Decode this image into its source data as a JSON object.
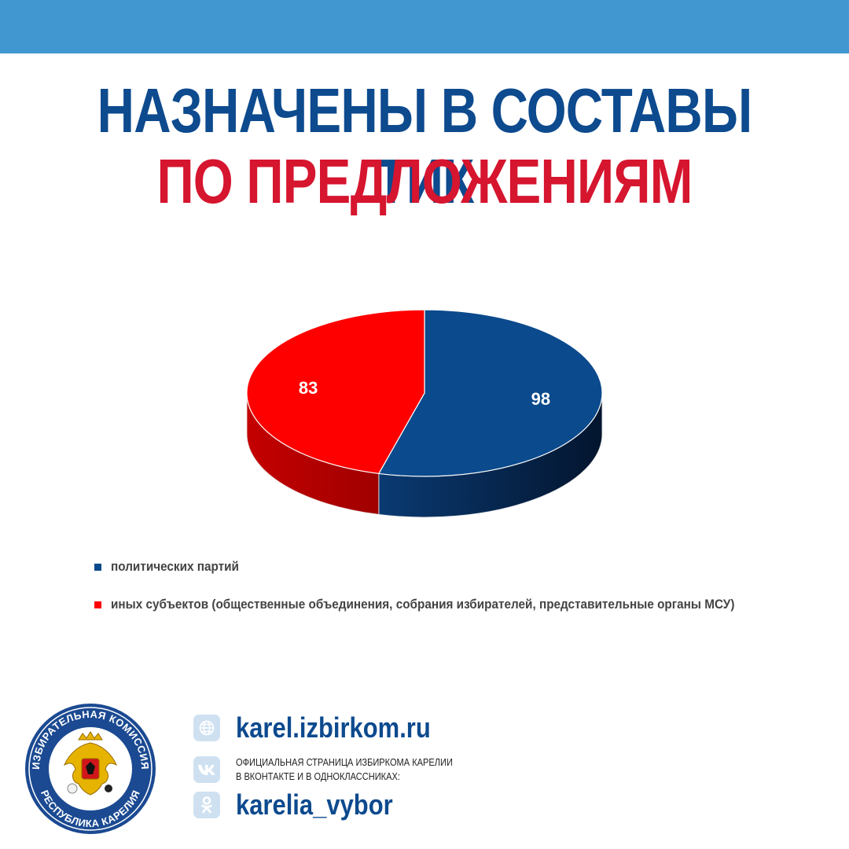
{
  "colors": {
    "top_bar": "#4197cf",
    "title_primary": "#0d4a8e",
    "title_accent": "#d6152f",
    "series_parties": "#0b4a8c",
    "series_other": "#ff0000",
    "icon_bg": "#cfe1f1",
    "icon_fg": "#6a9fd0"
  },
  "header": {
    "title_line1": "НАЗНАЧЕНЫ В СОСТАВЫ ТИК",
    "title_line2": "ПО ПРЕДЛОЖЕНИЯМ"
  },
  "chart_data": {
    "type": "pie",
    "style": "3d",
    "legend_position": "bottom-left",
    "slices": [
      {
        "label": "политических партий",
        "value": 98
      },
      {
        "label": "иных субъектов (общественные объединения, собрания избирателей, представительные органы МСУ)",
        "value": 83
      }
    ]
  },
  "seal": {
    "text_top": "ИЗБИРАТЕЛЬНАЯ КОМИССИЯ",
    "text_bottom": "РЕСПУБЛИКА КАРЕЛИЯ"
  },
  "contacts": {
    "website": "karel.izbirkom.ru",
    "description_line1": "ОФИЦИАЛЬНАЯ СТРАНИЦА ИЗБИРКОМА КАРЕЛИИ",
    "description_line2": "В ВКОНТАКТЕ И В ОДНОКЛАССНИКАХ:",
    "social_handle": "karelia_vybor",
    "icons": [
      "globe-icon",
      "vk-icon",
      "ok-icon"
    ]
  }
}
